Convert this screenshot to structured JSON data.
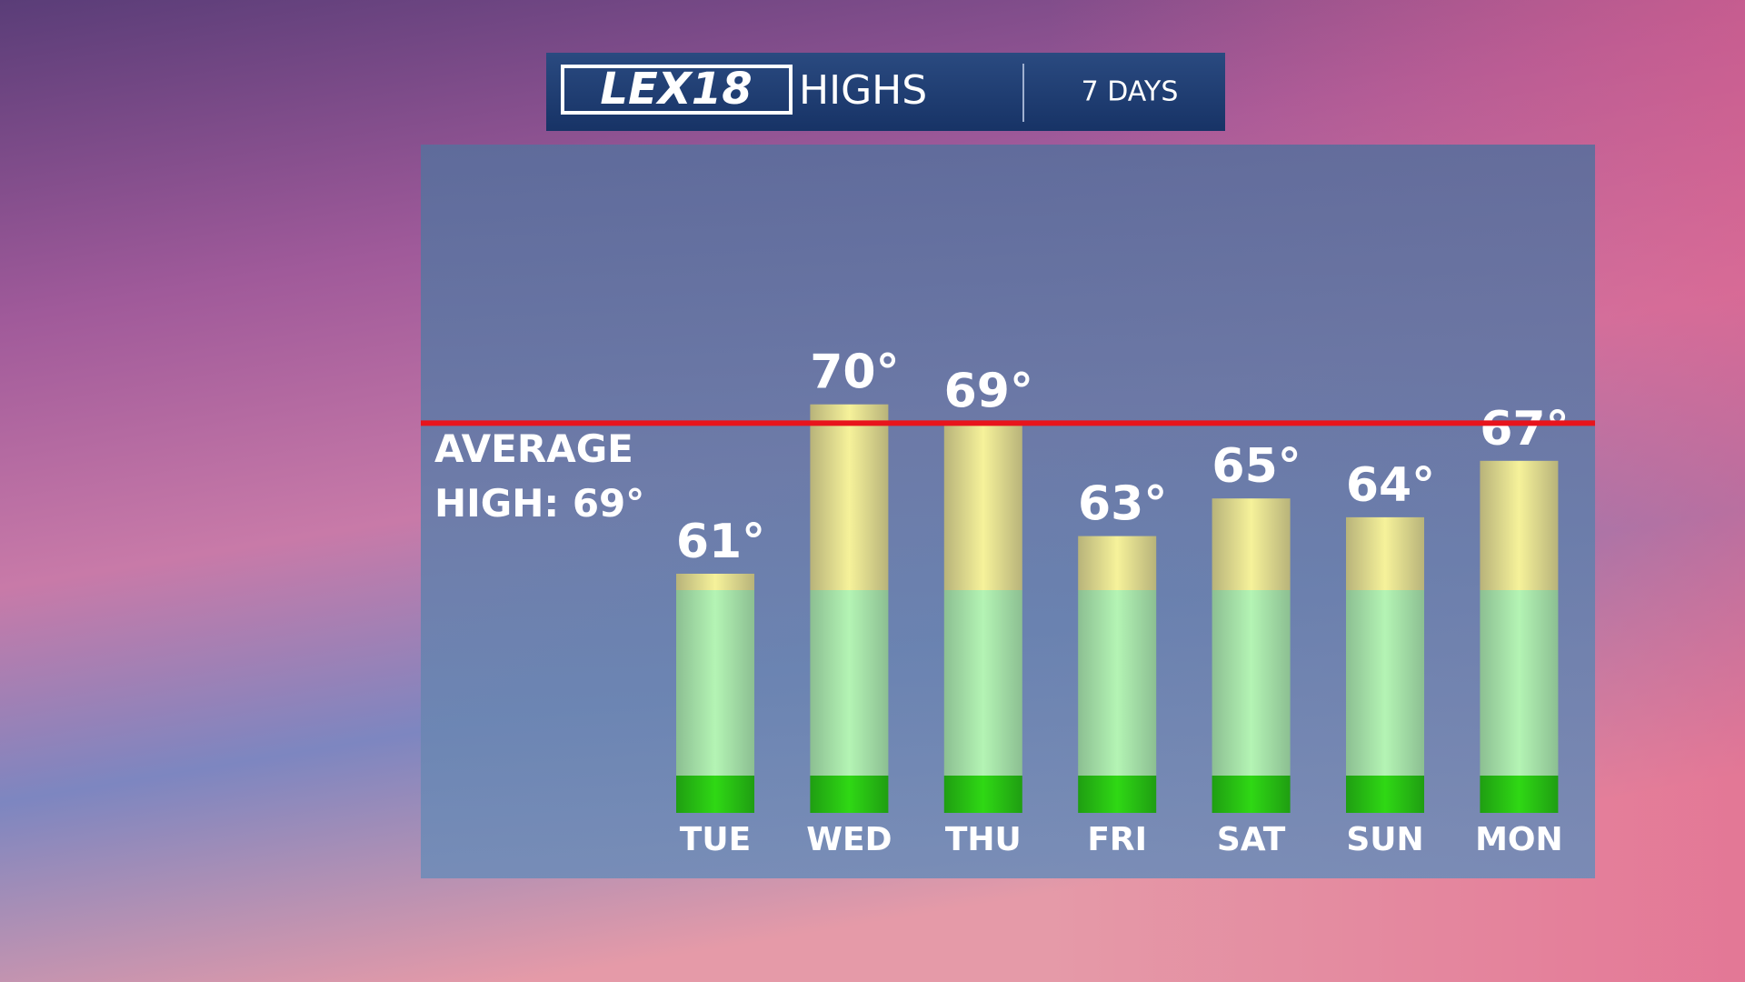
{
  "header": {
    "logo": "LEX18",
    "title": "HIGHS",
    "period": "7 DAYS"
  },
  "chart_data": {
    "type": "bar",
    "categories": [
      "TUE",
      "WED",
      "THU",
      "FRI",
      "SAT",
      "SUN",
      "MON"
    ],
    "values": [
      61,
      70,
      69,
      63,
      65,
      64,
      67
    ],
    "value_labels": [
      "61°",
      "70°",
      "69°",
      "63°",
      "65°",
      "64°",
      "67°"
    ],
    "ylim": [
      48,
      84
    ],
    "average": {
      "value": 69,
      "label_lines": [
        "AVERAGE",
        "HIGH: 69°"
      ],
      "color": "#e8141c"
    }
  }
}
